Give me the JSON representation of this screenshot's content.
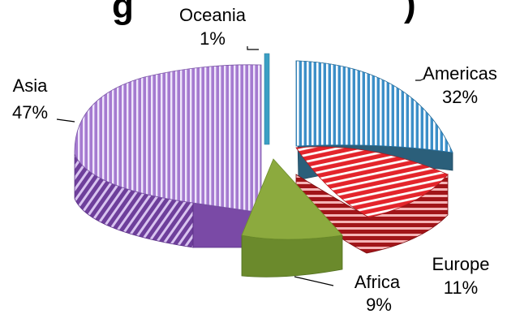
{
  "chart_data": {
    "type": "pie",
    "title_fragment_left": "g",
    "title_fragment_right": ")",
    "categories": [
      "Americas",
      "Europe",
      "Africa",
      "Asia",
      "Oceania"
    ],
    "values": [
      32,
      11,
      9,
      47,
      1
    ],
    "value_labels": [
      "32%",
      "11%",
      "9%",
      "47%",
      "1%"
    ],
    "colors": {
      "Americas": "#5aaee3",
      "Europe": "#e3242b",
      "Africa": "#8caa3e",
      "Asia": "#a57ad0",
      "Oceania": "#3b9fc4"
    },
    "style": "3d-exploded-pie-with-stripes"
  }
}
